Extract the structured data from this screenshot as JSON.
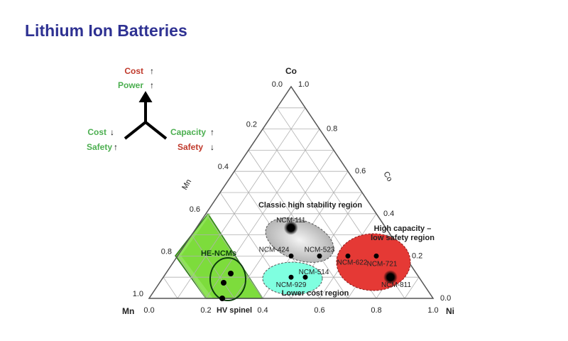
{
  "title": "Lithium Ion Batteries",
  "legend": {
    "top": [
      {
        "label": "Cost",
        "color": "#c0392b",
        "arrow": "up"
      },
      {
        "label": "Power",
        "color": "#4caf50",
        "arrow": "up"
      }
    ],
    "left": [
      {
        "label": "Cost",
        "color": "#4caf50",
        "arrow": "down"
      },
      {
        "label": "Safety",
        "color": "#4caf50",
        "arrow": "up"
      }
    ],
    "right": [
      {
        "label": "Capacity",
        "color": "#4caf50",
        "arrow": "up"
      },
      {
        "label": "Safety",
        "color": "#c0392b",
        "arrow": "down"
      }
    ]
  },
  "axes": {
    "apex": "Co",
    "left_corner": "Mn",
    "right_corner": "Ni",
    "left_axis_title": "Mn",
    "right_axis_title": "Co",
    "apex_ticks": [
      "0.0",
      "1.0"
    ],
    "left_ticks": [
      "0.2",
      "0.4",
      "0.6",
      "0.8",
      "1.0"
    ],
    "right_ticks": [
      "0.8",
      "0.6",
      "0.4",
      "0.2",
      "0.0"
    ],
    "bottom_ticks": [
      "0.0",
      "0.2",
      "0.4",
      "0.6",
      "0.8",
      "1.0"
    ]
  },
  "regions": {
    "stability": "Classic high stability region",
    "capacity_1": "High capacity –",
    "capacity_2": "low safety region",
    "lowcost": "Lower cost region",
    "he": "HE-NCMs",
    "spinel": "HV spinel"
  },
  "colors": {
    "gray": "#bdbdbd",
    "cyan": "#7fffe0",
    "red": "#e53935",
    "green": "#7ddc3c"
  },
  "points": [
    {
      "label": "NCM-111",
      "ni": 0.333,
      "co": 0.333
    },
    {
      "label": "NCM-424",
      "ni": 0.4,
      "co": 0.2
    },
    {
      "label": "NCM-523",
      "ni": 0.5,
      "co": 0.2
    },
    {
      "label": "NCM-622",
      "ni": 0.6,
      "co": 0.2
    },
    {
      "label": "NCM-721",
      "ni": 0.7,
      "co": 0.2
    },
    {
      "label": "NCM-811",
      "ni": 0.8,
      "co": 0.1
    },
    {
      "label": "NCM-929",
      "ni": 0.45,
      "co": 0.1
    },
    {
      "label": "NCM-514",
      "ni": 0.5,
      "co": 0.1
    }
  ]
}
